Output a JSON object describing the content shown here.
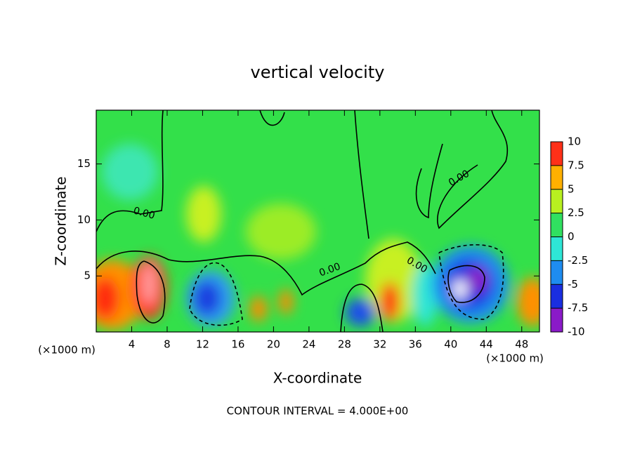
{
  "chart_data": {
    "type": "contour",
    "title": "vertical velocity",
    "x_label": "X-coordinate",
    "y_label": "Z-coordinate",
    "x_unit": "(×1000 m)",
    "x_unit_right": "(×1000 m)",
    "footer": "CONTOUR INTERVAL = 4.000E+00",
    "xlim": [
      0,
      50
    ],
    "xticks": [
      4,
      8,
      12,
      16,
      20,
      24,
      28,
      32,
      36,
      40,
      44,
      48
    ],
    "ylim": [
      0,
      19.8
    ],
    "yticks": [
      5,
      10,
      15
    ],
    "contour_labels": [
      "0.00",
      "0.00",
      "0.00",
      "0.00"
    ],
    "colorbar": {
      "lim": [
        -10,
        10
      ],
      "ticks": [
        -10,
        -7.5,
        -5,
        -2.5,
        0,
        2.5,
        5,
        7.5,
        10
      ],
      "colors": [
        "#8a1ac8",
        "#1a2ee0",
        "#1e8cf0",
        "#2ee6d6",
        "#30e060",
        "#b8f020",
        "#ffb000",
        "#ff3018"
      ]
    }
  }
}
